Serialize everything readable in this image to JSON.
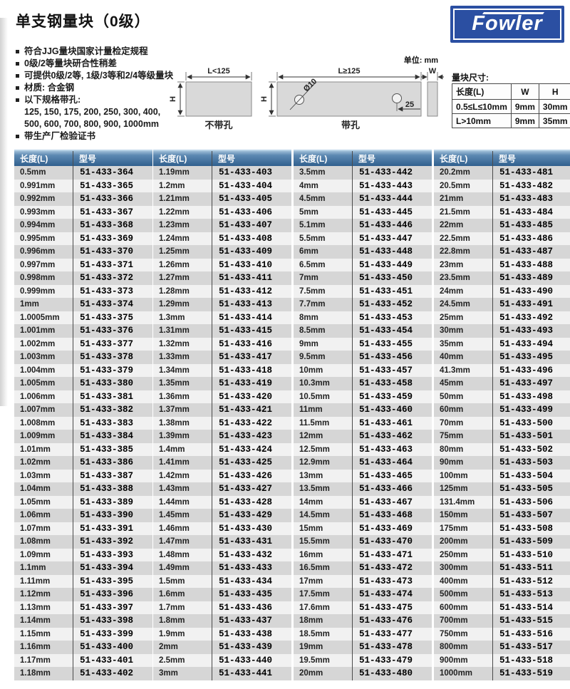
{
  "page": {
    "title": "单支钢量块（0级）",
    "unit_note": "单位: mm"
  },
  "logo": {
    "text": "Fowler",
    "bg_color": "#2b4fa2"
  },
  "features": {
    "items": [
      {
        "bullet": true,
        "text": "符合JJG量块国家计量检定规程"
      },
      {
        "bullet": true,
        "text": "0级/2等量块研合性稍差"
      },
      {
        "bullet": true,
        "text": "可提供0级/2等, 1级/3等和2/4等级量块"
      },
      {
        "bullet": true,
        "text": "材质: 合金钢"
      },
      {
        "bullet": true,
        "text": "以下规格带孔:"
      },
      {
        "bullet": false,
        "text": "125, 150, 175, 200, 250, 300, 400,"
      },
      {
        "bullet": false,
        "text": "500, 600, 700, 800, 900, 1000mm"
      },
      {
        "bullet": true,
        "text": "带生产厂检验证书"
      }
    ]
  },
  "diagram": {
    "left": {
      "dim_label": "L<125",
      "h_label": "H",
      "caption": "不带孔"
    },
    "right": {
      "dim_label": "L≥125",
      "h_label": "H",
      "hole_label": "Ø10",
      "offset_label": "25",
      "caption": "带孔"
    },
    "w_label": "W"
  },
  "size_table": {
    "title": "量块尺寸:",
    "headers": [
      "长度(L)",
      "W",
      "H"
    ],
    "rows": [
      [
        "0.5≤L≤10mm",
        "9mm",
        "30mm"
      ],
      [
        "L>10mm",
        "9mm",
        "35mm"
      ]
    ]
  },
  "product_tables": {
    "headers": [
      "长度(L)",
      "型号"
    ],
    "accent_color": "#31608e",
    "stripe_colors": [
      "#d6d6d6",
      "#f1f1f1"
    ],
    "tables": [
      {
        "rows": [
          [
            "0.5mm",
            "51-433-364"
          ],
          [
            "0.991mm",
            "51-433-365"
          ],
          [
            "0.992mm",
            "51-433-366"
          ],
          [
            "0.993mm",
            "51-433-367"
          ],
          [
            "0.994mm",
            "51-433-368"
          ],
          [
            "0.995mm",
            "51-433-369"
          ],
          [
            "0.996mm",
            "51-433-370"
          ],
          [
            "0.997mm",
            "51-433-371"
          ],
          [
            "0.998mm",
            "51-433-372"
          ],
          [
            "0.999mm",
            "51-433-373"
          ],
          [
            "1mm",
            "51-433-374"
          ],
          [
            "1.0005mm",
            "51-433-375"
          ],
          [
            "1.001mm",
            "51-433-376"
          ],
          [
            "1.002mm",
            "51-433-377"
          ],
          [
            "1.003mm",
            "51-433-378"
          ],
          [
            "1.004mm",
            "51-433-379"
          ],
          [
            "1.005mm",
            "51-433-380"
          ],
          [
            "1.006mm",
            "51-433-381"
          ],
          [
            "1.007mm",
            "51-433-382"
          ],
          [
            "1.008mm",
            "51-433-383"
          ],
          [
            "1.009mm",
            "51-433-384"
          ],
          [
            "1.01mm",
            "51-433-385"
          ],
          [
            "1.02mm",
            "51-433-386"
          ],
          [
            "1.03mm",
            "51-433-387"
          ],
          [
            "1.04mm",
            "51-433-388"
          ],
          [
            "1.05mm",
            "51-433-389"
          ],
          [
            "1.06mm",
            "51-433-390"
          ],
          [
            "1.07mm",
            "51-433-391"
          ],
          [
            "1.08mm",
            "51-433-392"
          ],
          [
            "1.09mm",
            "51-433-393"
          ],
          [
            "1.1mm",
            "51-433-394"
          ],
          [
            "1.11mm",
            "51-433-395"
          ],
          [
            "1.12mm",
            "51-433-396"
          ],
          [
            "1.13mm",
            "51-433-397"
          ],
          [
            "1.14mm",
            "51-433-398"
          ],
          [
            "1.15mm",
            "51-433-399"
          ],
          [
            "1.16mm",
            "51-433-400"
          ],
          [
            "1.17mm",
            "51-433-401"
          ],
          [
            "1.18mm",
            "51-433-402"
          ]
        ]
      },
      {
        "rows": [
          [
            "1.19mm",
            "51-433-403"
          ],
          [
            "1.2mm",
            "51-433-404"
          ],
          [
            "1.21mm",
            "51-433-405"
          ],
          [
            "1.22mm",
            "51-433-406"
          ],
          [
            "1.23mm",
            "51-433-407"
          ],
          [
            "1.24mm",
            "51-433-408"
          ],
          [
            "1.25mm",
            "51-433-409"
          ],
          [
            "1.26mm",
            "51-433-410"
          ],
          [
            "1.27mm",
            "51-433-411"
          ],
          [
            "1.28mm",
            "51-433-412"
          ],
          [
            "1.29mm",
            "51-433-413"
          ],
          [
            "1.3mm",
            "51-433-414"
          ],
          [
            "1.31mm",
            "51-433-415"
          ],
          [
            "1.32mm",
            "51-433-416"
          ],
          [
            "1.33mm",
            "51-433-417"
          ],
          [
            "1.34mm",
            "51-433-418"
          ],
          [
            "1.35mm",
            "51-433-419"
          ],
          [
            "1.36mm",
            "51-433-420"
          ],
          [
            "1.37mm",
            "51-433-421"
          ],
          [
            "1.38mm",
            "51-433-422"
          ],
          [
            "1.39mm",
            "51-433-423"
          ],
          [
            "1.4mm",
            "51-433-424"
          ],
          [
            "1.41mm",
            "51-433-425"
          ],
          [
            "1.42mm",
            "51-433-426"
          ],
          [
            "1.43mm",
            "51-433-427"
          ],
          [
            "1.44mm",
            "51-433-428"
          ],
          [
            "1.45mm",
            "51-433-429"
          ],
          [
            "1.46mm",
            "51-433-430"
          ],
          [
            "1.47mm",
            "51-433-431"
          ],
          [
            "1.48mm",
            "51-433-432"
          ],
          [
            "1.49mm",
            "51-433-433"
          ],
          [
            "1.5mm",
            "51-433-434"
          ],
          [
            "1.6mm",
            "51-433-435"
          ],
          [
            "1.7mm",
            "51-433-436"
          ],
          [
            "1.8mm",
            "51-433-437"
          ],
          [
            "1.9mm",
            "51-433-438"
          ],
          [
            "2mm",
            "51-433-439"
          ],
          [
            "2.5mm",
            "51-433-440"
          ],
          [
            "3mm",
            "51-433-441"
          ]
        ]
      },
      {
        "rows": [
          [
            "3.5mm",
            "51-433-442"
          ],
          [
            "4mm",
            "51-433-443"
          ],
          [
            "4.5mm",
            "51-433-444"
          ],
          [
            "5mm",
            "51-433-445"
          ],
          [
            "5.1mm",
            "51-433-446"
          ],
          [
            "5.5mm",
            "51-433-447"
          ],
          [
            "6mm",
            "51-433-448"
          ],
          [
            "6.5mm",
            "51-433-449"
          ],
          [
            "7mm",
            "51-433-450"
          ],
          [
            "7.5mm",
            "51-433-451"
          ],
          [
            "7.7mm",
            "51-433-452"
          ],
          [
            "8mm",
            "51-433-453"
          ],
          [
            "8.5mm",
            "51-433-454"
          ],
          [
            "9mm",
            "51-433-455"
          ],
          [
            "9.5mm",
            "51-433-456"
          ],
          [
            "10mm",
            "51-433-457"
          ],
          [
            "10.3mm",
            "51-433-458"
          ],
          [
            "10.5mm",
            "51-433-459"
          ],
          [
            "11mm",
            "51-433-460"
          ],
          [
            "11.5mm",
            "51-433-461"
          ],
          [
            "12mm",
            "51-433-462"
          ],
          [
            "12.5mm",
            "51-433-463"
          ],
          [
            "12.9mm",
            "51-433-464"
          ],
          [
            "13mm",
            "51-433-465"
          ],
          [
            "13.5mm",
            "51-433-466"
          ],
          [
            "14mm",
            "51-433-467"
          ],
          [
            "14.5mm",
            "51-433-468"
          ],
          [
            "15mm",
            "51-433-469"
          ],
          [
            "15.5mm",
            "51-433-470"
          ],
          [
            "16mm",
            "51-433-471"
          ],
          [
            "16.5mm",
            "51-433-472"
          ],
          [
            "17mm",
            "51-433-473"
          ],
          [
            "17.5mm",
            "51-433-474"
          ],
          [
            "17.6mm",
            "51-433-475"
          ],
          [
            "18mm",
            "51-433-476"
          ],
          [
            "18.5mm",
            "51-433-477"
          ],
          [
            "19mm",
            "51-433-478"
          ],
          [
            "19.5mm",
            "51-433-479"
          ],
          [
            "20mm",
            "51-433-480"
          ]
        ]
      },
      {
        "rows": [
          [
            "20.2mm",
            "51-433-481"
          ],
          [
            "20.5mm",
            "51-433-482"
          ],
          [
            "21mm",
            "51-433-483"
          ],
          [
            "21.5mm",
            "51-433-484"
          ],
          [
            "22mm",
            "51-433-485"
          ],
          [
            "22.5mm",
            "51-433-486"
          ],
          [
            "22.8mm",
            "51-433-487"
          ],
          [
            "23mm",
            "51-433-488"
          ],
          [
            "23.5mm",
            "51-433-489"
          ],
          [
            "24mm",
            "51-433-490"
          ],
          [
            "24.5mm",
            "51-433-491"
          ],
          [
            "25mm",
            "51-433-492"
          ],
          [
            "30mm",
            "51-433-493"
          ],
          [
            "35mm",
            "51-433-494"
          ],
          [
            "40mm",
            "51-433-495"
          ],
          [
            "41.3mm",
            "51-433-496"
          ],
          [
            "45mm",
            "51-433-497"
          ],
          [
            "50mm",
            "51-433-498"
          ],
          [
            "60mm",
            "51-433-499"
          ],
          [
            "70mm",
            "51-433-500"
          ],
          [
            "75mm",
            "51-433-501"
          ],
          [
            "80mm",
            "51-433-502"
          ],
          [
            "90mm",
            "51-433-503"
          ],
          [
            "100mm",
            "51-433-504"
          ],
          [
            "125mm",
            "51-433-505"
          ],
          [
            "131.4mm",
            "51-433-506"
          ],
          [
            "150mm",
            "51-433-507"
          ],
          [
            "175mm",
            "51-433-508"
          ],
          [
            "200mm",
            "51-433-509"
          ],
          [
            "250mm",
            "51-433-510"
          ],
          [
            "300mm",
            "51-433-511"
          ],
          [
            "400mm",
            "51-433-512"
          ],
          [
            "500mm",
            "51-433-513"
          ],
          [
            "600mm",
            "51-433-514"
          ],
          [
            "700mm",
            "51-433-515"
          ],
          [
            "750mm",
            "51-433-516"
          ],
          [
            "800mm",
            "51-433-517"
          ],
          [
            "900mm",
            "51-433-518"
          ],
          [
            "1000mm",
            "51-433-519"
          ]
        ]
      }
    ]
  }
}
